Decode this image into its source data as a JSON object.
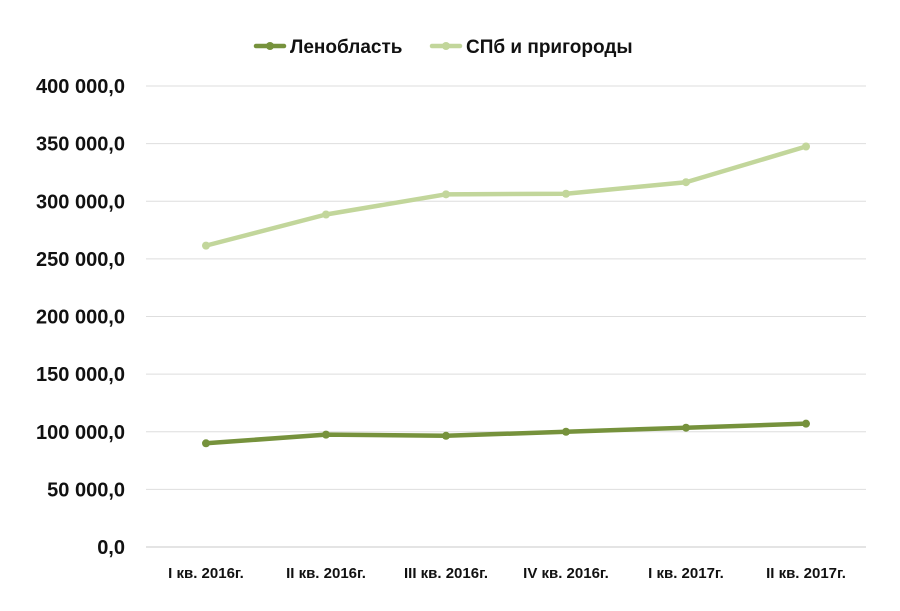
{
  "chart_data": {
    "type": "line",
    "title": "",
    "xlabel": "",
    "ylabel": "",
    "categories": [
      "I кв. 2016г.",
      "II кв. 2016г.",
      "III кв. 2016г.",
      "IV кв. 2016г.",
      "I кв. 2017г.",
      "II кв. 2017г."
    ],
    "ylim": [
      0,
      400000
    ],
    "yticks": [
      0,
      50000,
      100000,
      150000,
      200000,
      250000,
      300000,
      350000,
      400000
    ],
    "ytick_labels": [
      "0,0",
      "50 000,0",
      "100 000,0",
      "150 000,0",
      "200 000,0",
      "250 000,0",
      "300 000,0",
      "350 000,0",
      "400 000,0"
    ],
    "grid": true,
    "legend_position": "top",
    "series": [
      {
        "name": "Ленобласть",
        "color": "#76923c",
        "values": [
          90000,
          97500,
          96500,
          100000,
          103500,
          107000
        ]
      },
      {
        "name": "СПб и пригороды",
        "color": "#c2d69b",
        "values": [
          261500,
          288500,
          306000,
          306500,
          316500,
          347500
        ]
      }
    ]
  }
}
